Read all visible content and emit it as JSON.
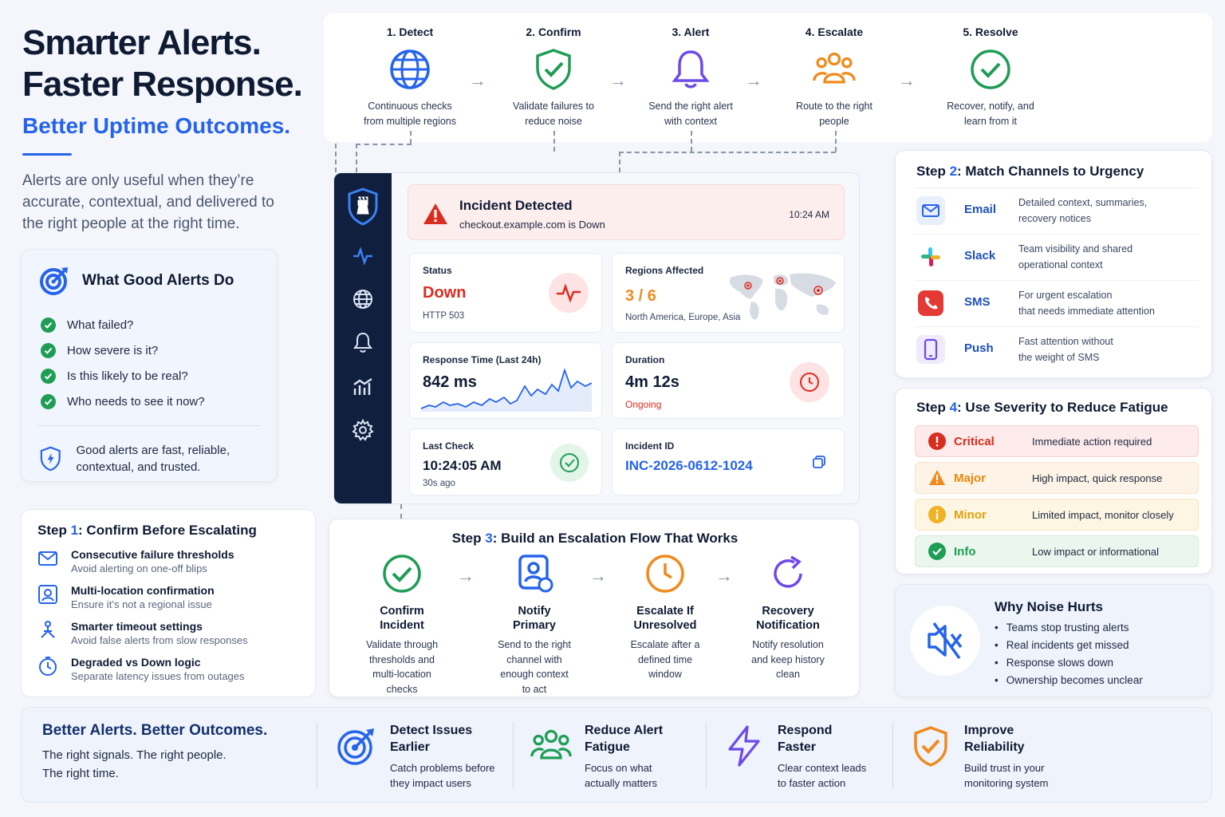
{
  "hero": {
    "title_line1": "Smarter Alerts.",
    "title_line2": "Faster Response.",
    "subtitle": "Better Uptime Outcomes.",
    "description": "Alerts are only useful when they’re accurate, contextual, and delivered to the right people at the right time."
  },
  "good_alerts": {
    "title": "What Good Alerts Do",
    "items": [
      "What failed?",
      "How severe is it?",
      "Is this likely to be real?",
      "Who needs to see it now?"
    ],
    "footer": "Good alerts are fast, reliable, contextual, and trusted."
  },
  "step1": {
    "prefix": "Step ",
    "num": "1",
    "title": ": Confirm Before Escalating",
    "rows": [
      {
        "title": "Consecutive failure thresholds",
        "desc": "Avoid alerting on one-off blips",
        "icon": "mail-icon"
      },
      {
        "title": "Multi-location confirmation",
        "desc": "Ensure it’s not a regional issue",
        "icon": "location-icon"
      },
      {
        "title": "Smarter timeout settings",
        "desc": "Avoid false alerts from slow responses",
        "icon": "network-icon"
      },
      {
        "title": "Degraded vs Down logic",
        "desc": "Separate latency issues from outages",
        "icon": "timer-icon"
      }
    ]
  },
  "flow": {
    "steps": [
      {
        "label": "1. Detect",
        "desc1": "Continuous checks",
        "desc2": "from multiple regions",
        "icon": "globe-icon"
      },
      {
        "label": "2. Confirm",
        "desc1": "Validate failures to",
        "desc2": "reduce noise",
        "icon": "shield-check-icon"
      },
      {
        "label": "3. Alert",
        "desc1": "Send the right alert",
        "desc2": "with context",
        "icon": "bell-icon"
      },
      {
        "label": "4. Escalate",
        "desc1": "Route to the right",
        "desc2": "people",
        "icon": "team-icon"
      },
      {
        "label": "5. Resolve",
        "desc1": "Recover, notify, and",
        "desc2": "learn from it",
        "icon": "check-circle-icon"
      }
    ]
  },
  "dashboard": {
    "incident_title": "Incident Detected",
    "incident_sub": "checkout.example.com is Down",
    "incident_time": "10:24 AM",
    "status_label": "Status",
    "status_value": "Down",
    "status_code": "HTTP 503",
    "regions_label": "Regions Affected",
    "regions_value": "3 / 6",
    "regions_list": "North America, Europe, Asia",
    "response_label": "Response Time (Last 24h)",
    "response_value": "842 ms",
    "duration_label": "Duration",
    "duration_value": "4m 12s",
    "duration_state": "Ongoing",
    "lastcheck_label": "Last Check",
    "lastcheck_value": "10:24:05 AM",
    "lastcheck_ago": "30s ago",
    "incident_id_label": "Incident ID",
    "incident_id_value": "INC-2026-0612-1024"
  },
  "step2": {
    "prefix": "Step ",
    "num": "2",
    "title": ": Match Channels to Urgency",
    "channels": [
      {
        "name": "Email",
        "desc1": "Detailed context, summaries,",
        "desc2": "recovery notices",
        "icon": "email-icon"
      },
      {
        "name": "Slack",
        "desc1": "Team visibility and shared",
        "desc2": "operational context",
        "icon": "slack-icon"
      },
      {
        "name": "SMS",
        "desc1": "For urgent escalation",
        "desc2": "that needs immediate attention",
        "icon": "sms-icon"
      },
      {
        "name": "Push",
        "desc1": "Fast attention without",
        "desc2": "the weight of SMS",
        "icon": "phone-icon"
      }
    ]
  },
  "step4": {
    "prefix": "Step ",
    "num": "4",
    "title": ": Use Severity to Reduce Fatigue",
    "levels": [
      {
        "name": "Critical",
        "desc": "Immediate action required",
        "color": "#d92d20"
      },
      {
        "name": "Major",
        "desc": "High impact, quick response",
        "color": "#e8890c"
      },
      {
        "name": "Minor",
        "desc": "Limited impact, monitor closely",
        "color": "#e0a10b"
      },
      {
        "name": "Info",
        "desc": "Low impact or informational",
        "color": "#1f9d55"
      }
    ]
  },
  "noise": {
    "title": "Why Noise Hurts",
    "items": [
      "Teams stop trusting alerts",
      "Real incidents get missed",
      "Response slows down",
      "Ownership becomes unclear"
    ]
  },
  "step3": {
    "prefix": "Step ",
    "num": "3",
    "title": ": Build an Escalation Flow That Works",
    "steps": [
      {
        "name1": "Confirm",
        "name2": "Incident",
        "desc": [
          "Validate through",
          "thresholds and",
          "multi-location",
          "checks"
        ]
      },
      {
        "name1": "Notify",
        "name2": "Primary",
        "desc": [
          "Send to the right",
          "channel with",
          "enough context",
          "to act"
        ]
      },
      {
        "name1": "Escalate If",
        "name2": "Unresolved",
        "desc": [
          "Escalate after a",
          "defined time",
          "window"
        ]
      },
      {
        "name1": "Recovery",
        "name2": "Notification",
        "desc": [
          "Notify resolution",
          "and keep history",
          "clean"
        ]
      }
    ]
  },
  "bottom": {
    "title": "Better Alerts. Better Outcomes.",
    "line1": "The right signals. The right people.",
    "line2": "The right time.",
    "items": [
      {
        "h1": "Detect Issues",
        "h2": "Earlier",
        "p1": "Catch problems before",
        "p2": "they impact users",
        "icon": "target-icon"
      },
      {
        "h1": "Reduce Alert",
        "h2": "Fatigue",
        "p1": "Focus on what",
        "p2": "actually matters",
        "icon": "team-icon"
      },
      {
        "h1": "Respond",
        "h2": "Faster",
        "p1": "Clear context leads",
        "p2": "to faster action",
        "icon": "lightning-icon"
      },
      {
        "h1": "Improve",
        "h2": "Reliability",
        "p1": "Build trust in your",
        "p2": "monitoring system",
        "icon": "shield-check-icon"
      }
    ]
  },
  "colors": {
    "accent": "#2563eb",
    "danger": "#d92d20",
    "success": "#1f9d55",
    "sidebar": "#0f1f3d"
  }
}
